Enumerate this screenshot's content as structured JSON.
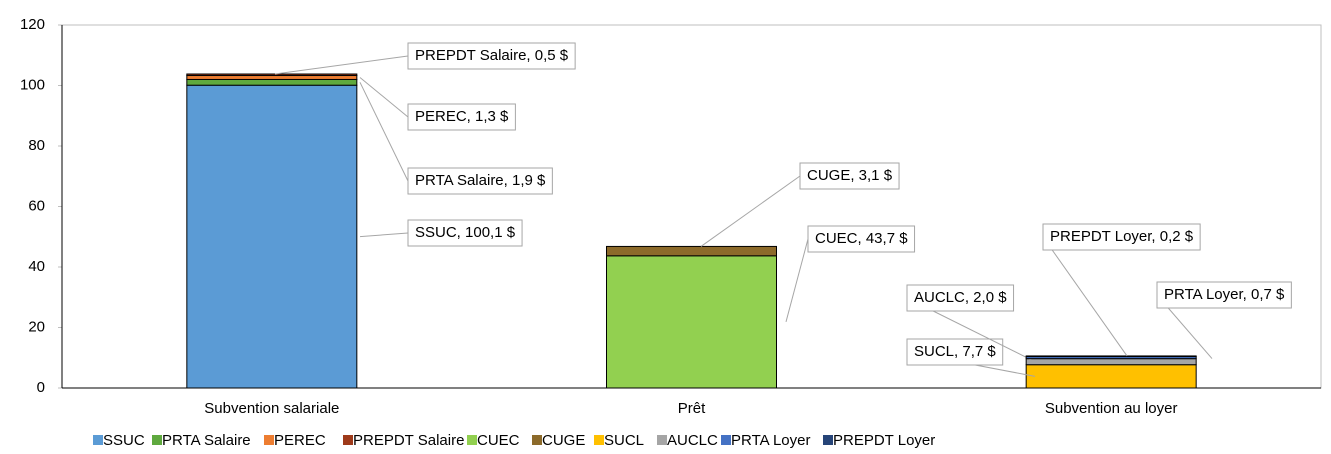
{
  "chart_data": {
    "type": "stacked-bar",
    "categories": [
      "Subvention salariale",
      "Prêt",
      "Subvention au loyer"
    ],
    "ylim": [
      0,
      120
    ],
    "yticks": [
      0,
      20,
      40,
      60,
      80,
      100,
      120
    ],
    "series": [
      {
        "name": "SSUC",
        "color": "#5b9bd5",
        "values": [
          100.1,
          null,
          null
        ],
        "value_labels": [
          "SSUC, 100,1 $",
          null,
          null
        ]
      },
      {
        "name": "PRTA Salaire",
        "color": "#5fa93e",
        "values": [
          1.9,
          null,
          null
        ],
        "value_labels": [
          "PRTA Salaire, 1,9 $",
          null,
          null
        ]
      },
      {
        "name": "PEREC",
        "color": "#ed7d31",
        "values": [
          1.3,
          null,
          null
        ],
        "value_labels": [
          "PEREC, 1,3 $",
          null,
          null
        ]
      },
      {
        "name": "PREPDT Salaire",
        "color": "#9e3a1a",
        "values": [
          0.5,
          null,
          null
        ],
        "value_labels": [
          "PREPDT Salaire, 0,5 $",
          null,
          null
        ]
      },
      {
        "name": "CUEC",
        "color": "#92d050",
        "values": [
          null,
          43.7,
          null
        ],
        "value_labels": [
          null,
          "CUEC, 43,7 $",
          null
        ]
      },
      {
        "name": "CUGE",
        "color": "#8c6a2a",
        "values": [
          null,
          3.1,
          null
        ],
        "value_labels": [
          null,
          "CUGE, 3,1 $",
          null
        ]
      },
      {
        "name": "SUCL",
        "color": "#ffc000",
        "values": [
          null,
          null,
          7.7
        ],
        "value_labels": [
          null,
          null,
          "SUCL, 7,7 $"
        ]
      },
      {
        "name": "AUCLC",
        "color": "#a5a5a5",
        "values": [
          null,
          null,
          2.0
        ],
        "value_labels": [
          null,
          null,
          "AUCLC, 2,0 $"
        ]
      },
      {
        "name": "PRTA Loyer",
        "color": "#4472c4",
        "values": [
          null,
          null,
          0.7
        ],
        "value_labels": [
          null,
          null,
          "PRTA Loyer, 0,7 $"
        ]
      },
      {
        "name": "PREPDT Loyer",
        "color": "#264478",
        "values": [
          null,
          null,
          0.2
        ],
        "value_labels": [
          null,
          null,
          "PREPDT Loyer, 0,2 $"
        ]
      }
    ]
  }
}
